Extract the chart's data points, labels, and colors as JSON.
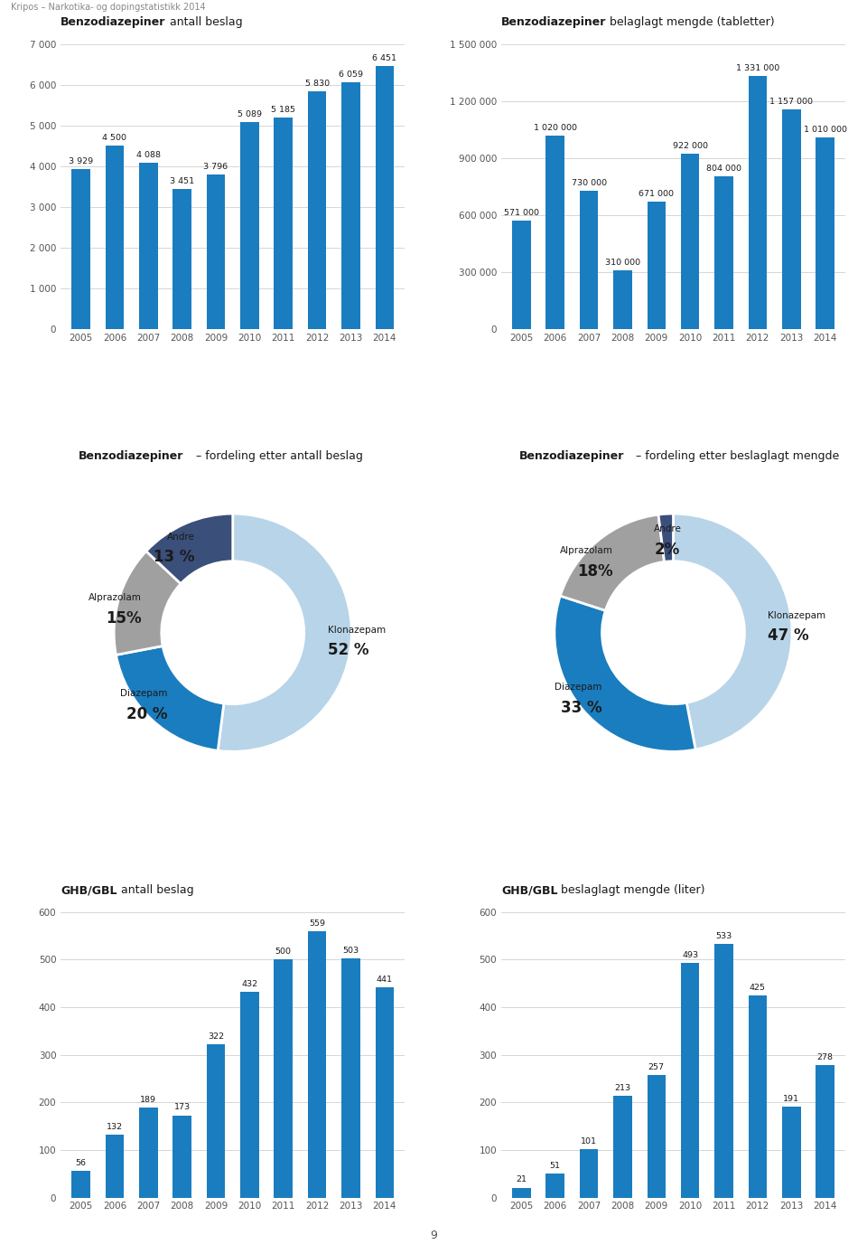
{
  "header_text": "Kripos – Narkotika- og dopingstatistikk 2014",
  "page_number": "9",
  "benzo_antall_title_bold": "Benzodiazepiner",
  "benzo_antall_title_rest": " antall beslag",
  "benzo_antall_years": [
    2005,
    2006,
    2007,
    2008,
    2009,
    2010,
    2011,
    2012,
    2013,
    2014
  ],
  "benzo_antall_values": [
    3929,
    4500,
    4088,
    3451,
    3796,
    5089,
    5185,
    5830,
    6059,
    6451
  ],
  "benzo_antall_ylim": [
    0,
    7000
  ],
  "benzo_antall_yticks": [
    0,
    1000,
    2000,
    3000,
    4000,
    5000,
    6000,
    7000
  ],
  "benzo_antall_ytick_labels": [
    "0",
    "1 000",
    "2 000",
    "3 000",
    "4 000",
    "5 000",
    "6 000",
    "7 000"
  ],
  "benzo_mengde_title_bold": "Benzodiazepiner",
  "benzo_mengde_title_rest": " belaglagt mengde (tabletter)",
  "benzo_mengde_years": [
    2005,
    2006,
    2007,
    2008,
    2009,
    2010,
    2011,
    2012,
    2013,
    2014
  ],
  "benzo_mengde_values": [
    571000,
    1020000,
    730000,
    310000,
    671000,
    922000,
    804000,
    1331000,
    1157000,
    1010000
  ],
  "benzo_mengde_ylim": [
    0,
    1500000
  ],
  "benzo_mengde_yticks": [
    0,
    300000,
    600000,
    900000,
    1200000,
    1500000
  ],
  "benzo_mengde_ytick_labels": [
    "0",
    "300 000",
    "600 000",
    "900 000",
    "1 200 000",
    "1 500 000"
  ],
  "pie1_title_bold": "Benzodiazepiner",
  "pie1_title_rest": " – fordeling etter antall beslag",
  "pie1_labels": [
    "Klonazepam",
    "Diazepam",
    "Alprazolam",
    "Andre"
  ],
  "pie1_pcts": [
    "52 %",
    "20 %",
    "15%",
    "13 %"
  ],
  "pie1_values": [
    52,
    20,
    15,
    13
  ],
  "pie1_colors": [
    "#b8d4e8",
    "#1a7dbf",
    "#a0a0a0",
    "#3a4f7a"
  ],
  "pie2_title_bold": "Benzodiazepiner",
  "pie2_title_rest": " – fordeling etter beslaglagt mengde",
  "pie2_labels": [
    "Klonazepam",
    "Diazepam",
    "Alprazolam",
    "Andre"
  ],
  "pie2_pcts": [
    "47 %",
    "33 %",
    "18%",
    "2%"
  ],
  "pie2_values": [
    47,
    33,
    18,
    2
  ],
  "pie2_colors": [
    "#b8d4e8",
    "#1a7dbf",
    "#a0a0a0",
    "#3a4f7a"
  ],
  "ghb_antall_title_bold": "GHB/GBL",
  "ghb_antall_title_rest": " antall beslag",
  "ghb_antall_years": [
    2005,
    2006,
    2007,
    2008,
    2009,
    2010,
    2011,
    2012,
    2013,
    2014
  ],
  "ghb_antall_values": [
    56,
    132,
    189,
    173,
    322,
    432,
    500,
    559,
    503,
    441
  ],
  "ghb_antall_ylim": [
    0,
    600
  ],
  "ghb_antall_yticks": [
    0,
    100,
    200,
    300,
    400,
    500,
    600
  ],
  "ghb_antall_ytick_labels": [
    "0",
    "100",
    "200",
    "300",
    "400",
    "500",
    "600"
  ],
  "ghb_mengde_title_bold": "GHB/GBL",
  "ghb_mengde_title_rest": " beslaglagt mengde (liter)",
  "ghb_mengde_years": [
    2005,
    2006,
    2007,
    2008,
    2009,
    2010,
    2011,
    2012,
    2013,
    2014
  ],
  "ghb_mengde_values": [
    21,
    51,
    101,
    213,
    257,
    493,
    533,
    425,
    191,
    278
  ],
  "ghb_mengde_ylim": [
    0,
    600
  ],
  "ghb_mengde_yticks": [
    0,
    100,
    200,
    300,
    400,
    500,
    600
  ],
  "ghb_mengde_ytick_labels": [
    "0",
    "100",
    "200",
    "300",
    "400",
    "500",
    "600"
  ],
  "bar_color": "#1a7dbf",
  "background_color": "#ffffff",
  "grid_color": "#d0d0d0",
  "text_color": "#1a1a1a",
  "tick_color": "#555555"
}
